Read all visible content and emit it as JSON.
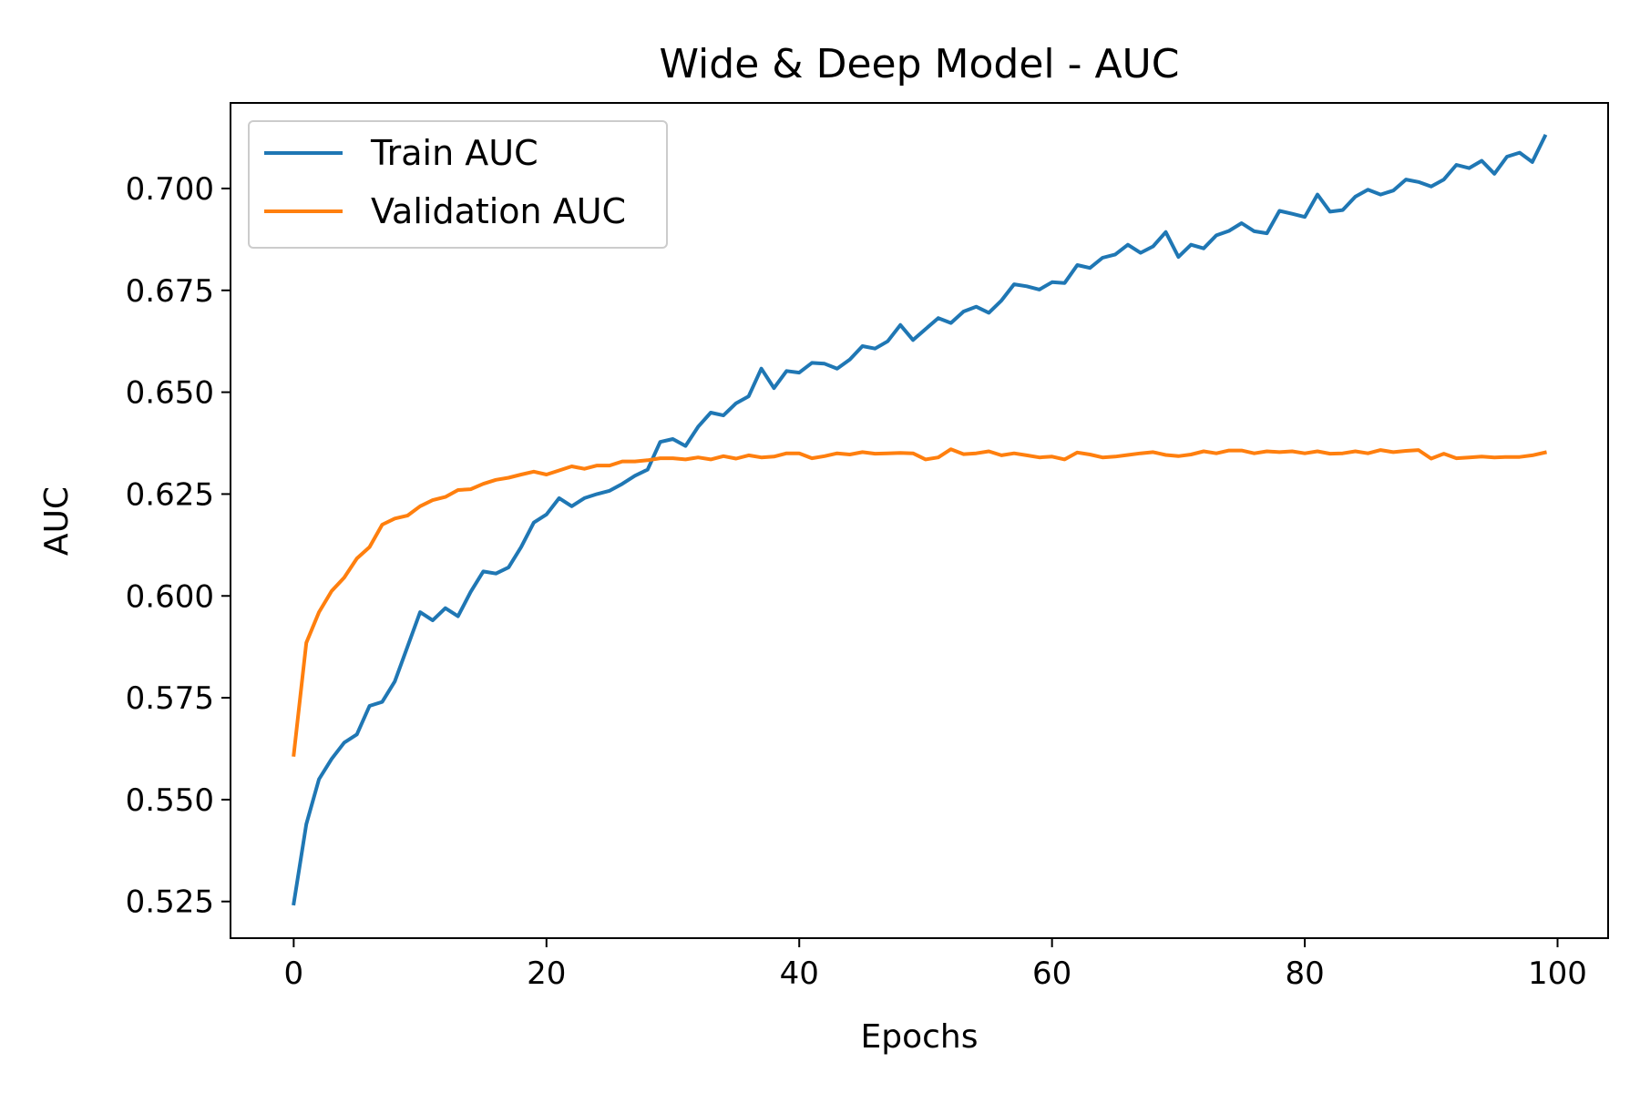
{
  "chart_data": {
    "type": "line",
    "title": "Wide & Deep Model - AUC",
    "xlabel": "Epochs",
    "ylabel": "AUC",
    "xlim": [
      -5,
      104
    ],
    "ylim": [
      0.516,
      0.721
    ],
    "xticks": [
      0,
      20,
      40,
      60,
      80,
      100
    ],
    "yticks": [
      0.525,
      0.55,
      0.575,
      0.6,
      0.625,
      0.65,
      0.675,
      0.7
    ],
    "ytick_labels": [
      "0.525",
      "0.550",
      "0.575",
      "0.600",
      "0.625",
      "0.650",
      "0.675",
      "0.700"
    ],
    "grid": false,
    "legend_position": "top-left",
    "series": [
      {
        "name": "Train AUC",
        "color": "#1f77b4",
        "x": [
          0,
          1,
          2,
          3,
          4,
          5,
          6,
          7,
          8,
          9,
          10,
          11,
          12,
          13,
          14,
          15,
          16,
          17,
          18,
          19,
          20,
          21,
          22,
          23,
          24,
          25,
          26,
          27,
          28,
          29,
          30,
          31,
          32,
          33,
          34,
          35,
          36,
          37,
          38,
          39,
          40,
          41,
          42,
          43,
          44,
          45,
          46,
          47,
          48,
          49,
          50,
          51,
          52,
          53,
          54,
          55,
          56,
          57,
          58,
          59,
          60,
          61,
          62,
          63,
          64,
          65,
          66,
          67,
          68,
          69,
          70,
          71,
          72,
          73,
          74,
          75,
          76,
          77,
          78,
          79,
          80,
          81,
          82,
          83,
          84,
          85,
          86,
          87,
          88,
          89,
          90,
          91,
          92,
          93,
          94,
          95,
          96,
          97,
          98,
          99
        ],
        "values": [
          0.5245,
          0.544,
          0.555,
          0.56,
          0.564,
          0.566,
          0.573,
          0.574,
          0.579,
          0.5875,
          0.596,
          0.594,
          0.597,
          0.595,
          0.601,
          0.606,
          0.6055,
          0.607,
          0.612,
          0.618,
          0.62,
          0.624,
          0.622,
          0.624,
          0.625,
          0.6258,
          0.6275,
          0.6295,
          0.631,
          0.6378,
          0.6385,
          0.6368,
          0.6415,
          0.645,
          0.6443,
          0.6473,
          0.649,
          0.6558,
          0.651,
          0.6552,
          0.6548,
          0.6572,
          0.657,
          0.6558,
          0.658,
          0.6613,
          0.6607,
          0.6625,
          0.6665,
          0.6628,
          0.6655,
          0.6682,
          0.667,
          0.6698,
          0.671,
          0.6695,
          0.6725,
          0.6765,
          0.676,
          0.6752,
          0.677,
          0.6768,
          0.6812,
          0.6805,
          0.683,
          0.6838,
          0.6862,
          0.6842,
          0.6858,
          0.6893,
          0.6832,
          0.6862,
          0.6853,
          0.6885,
          0.6896,
          0.6915,
          0.6895,
          0.689,
          0.6945,
          0.6938,
          0.693,
          0.6985,
          0.6943,
          0.6947,
          0.698,
          0.6997,
          0.6985,
          0.6995,
          0.7022,
          0.7016,
          0.7005,
          0.7022,
          0.7058,
          0.705,
          0.7068,
          0.7036,
          0.7078,
          0.7088,
          0.7065,
          0.7128
        ]
      },
      {
        "name": "Validation AUC",
        "color": "#ff7f0e",
        "x": [
          0,
          1,
          2,
          3,
          4,
          5,
          6,
          7,
          8,
          9,
          10,
          11,
          12,
          13,
          14,
          15,
          16,
          17,
          18,
          19,
          20,
          21,
          22,
          23,
          24,
          25,
          26,
          27,
          28,
          29,
          30,
          31,
          32,
          33,
          34,
          35,
          36,
          37,
          38,
          39,
          40,
          41,
          42,
          43,
          44,
          45,
          46,
          47,
          48,
          49,
          50,
          51,
          52,
          53,
          54,
          55,
          56,
          57,
          58,
          59,
          60,
          61,
          62,
          63,
          64,
          65,
          66,
          67,
          68,
          69,
          70,
          71,
          72,
          73,
          74,
          75,
          76,
          77,
          78,
          79,
          80,
          81,
          82,
          83,
          84,
          85,
          86,
          87,
          88,
          89,
          90,
          91,
          92,
          93,
          94,
          95,
          96,
          97,
          98,
          99
        ],
        "values": [
          0.561,
          0.5885,
          0.596,
          0.6012,
          0.6045,
          0.6092,
          0.612,
          0.6175,
          0.619,
          0.6197,
          0.622,
          0.6235,
          0.6243,
          0.626,
          0.6262,
          0.6275,
          0.6285,
          0.629,
          0.6298,
          0.6305,
          0.6298,
          0.6308,
          0.6318,
          0.6312,
          0.632,
          0.632,
          0.633,
          0.633,
          0.6333,
          0.6338,
          0.6338,
          0.6335,
          0.634,
          0.6335,
          0.6343,
          0.6337,
          0.6345,
          0.634,
          0.6342,
          0.635,
          0.635,
          0.6338,
          0.6343,
          0.635,
          0.6347,
          0.6353,
          0.6349,
          0.635,
          0.6351,
          0.635,
          0.6335,
          0.634,
          0.636,
          0.6348,
          0.635,
          0.6355,
          0.6345,
          0.635,
          0.6345,
          0.634,
          0.6342,
          0.6335,
          0.6352,
          0.6347,
          0.634,
          0.6342,
          0.6346,
          0.635,
          0.6353,
          0.6346,
          0.6343,
          0.6347,
          0.6355,
          0.635,
          0.6357,
          0.6357,
          0.635,
          0.6355,
          0.6353,
          0.6355,
          0.635,
          0.6355,
          0.6349,
          0.635,
          0.6355,
          0.635,
          0.6358,
          0.6353,
          0.6356,
          0.6358,
          0.6337,
          0.6349,
          0.6338,
          0.634,
          0.6342,
          0.634,
          0.6341,
          0.6341,
          0.6345,
          0.6352
        ]
      }
    ]
  }
}
